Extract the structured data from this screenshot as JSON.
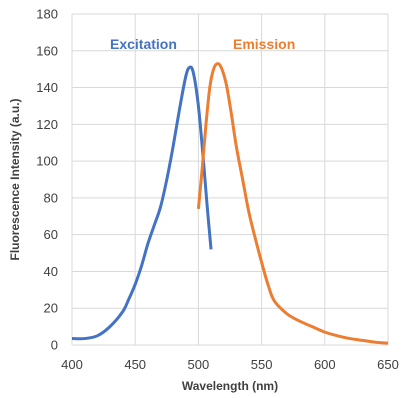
{
  "chart_data": {
    "type": "line",
    "title": "",
    "xlabel": "Wavelength (nm)",
    "ylabel": "Fluorescence Intensity (a.u.)",
    "xlim": [
      400,
      650
    ],
    "ylim": [
      0,
      180
    ],
    "x_ticks": [
      400,
      450,
      500,
      550,
      600,
      650
    ],
    "y_ticks": [
      0,
      20,
      40,
      60,
      80,
      100,
      120,
      140,
      160,
      180
    ],
    "grid": true,
    "series": [
      {
        "name": "Excitation",
        "color": "#4472C4",
        "points": [
          [
            400,
            3.5
          ],
          [
            410,
            3.5
          ],
          [
            420,
            5
          ],
          [
            430,
            10
          ],
          [
            440,
            18
          ],
          [
            445,
            25
          ],
          [
            450,
            33
          ],
          [
            455,
            43
          ],
          [
            460,
            55
          ],
          [
            465,
            65
          ],
          [
            470,
            75
          ],
          [
            475,
            90
          ],
          [
            480,
            108
          ],
          [
            485,
            128
          ],
          [
            490,
            146
          ],
          [
            493,
            151
          ],
          [
            496,
            148
          ],
          [
            500,
            130
          ],
          [
            504,
            100
          ],
          [
            507,
            75
          ],
          [
            510,
            52
          ]
        ]
      },
      {
        "name": "Emission",
        "color": "#ED7D31",
        "points": [
          [
            500,
            74
          ],
          [
            503,
            96
          ],
          [
            506,
            120
          ],
          [
            509,
            140
          ],
          [
            512,
            150
          ],
          [
            515,
            153
          ],
          [
            518,
            151
          ],
          [
            522,
            142
          ],
          [
            526,
            126
          ],
          [
            530,
            108
          ],
          [
            535,
            90
          ],
          [
            540,
            72
          ],
          [
            545,
            58
          ],
          [
            550,
            45
          ],
          [
            555,
            33
          ],
          [
            560,
            24
          ],
          [
            570,
            17
          ],
          [
            580,
            13
          ],
          [
            590,
            10
          ],
          [
            600,
            7
          ],
          [
            610,
            5
          ],
          [
            620,
            3.5
          ],
          [
            630,
            2.5
          ],
          [
            640,
            1.5
          ],
          [
            650,
            1
          ]
        ]
      }
    ]
  }
}
